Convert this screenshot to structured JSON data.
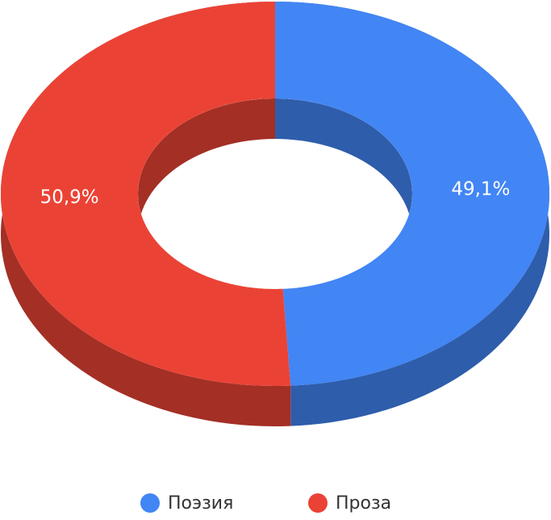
{
  "chart_data": {
    "type": "pie",
    "donut": true,
    "three_d": true,
    "categories": [
      "Поэзия",
      "Проза"
    ],
    "values": [
      49.1,
      50.9
    ],
    "value_labels": [
      "49,1%",
      "50,9%"
    ],
    "colors": [
      "#4285f4",
      "#ea4335"
    ],
    "legend": "bottom"
  }
}
